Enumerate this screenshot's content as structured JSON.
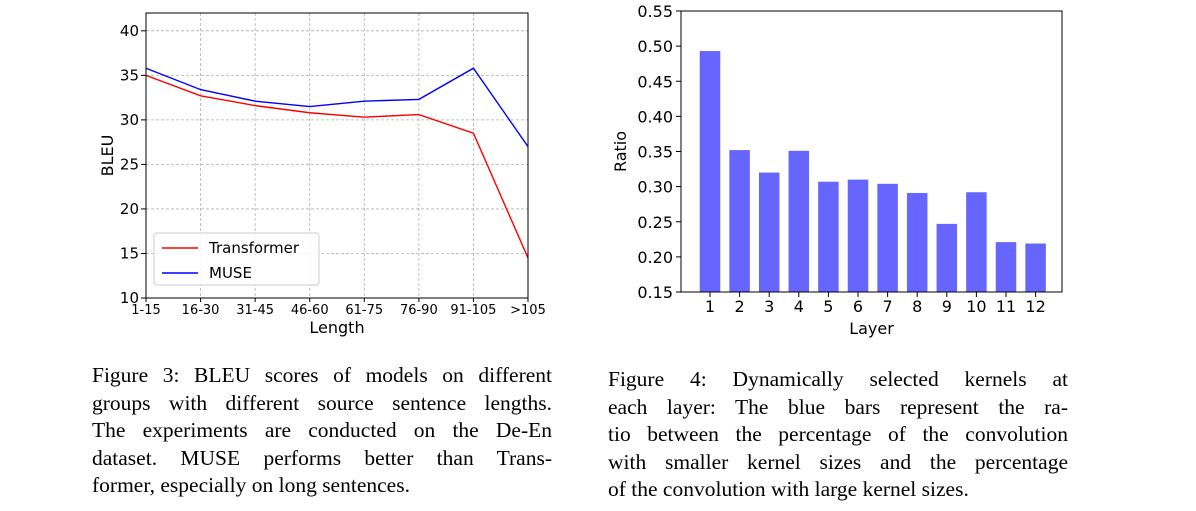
{
  "figures": [
    {
      "caption_lines": [
        "Figure 3: BLEU scores of models on different",
        "groups with different source sentence lengths.",
        "The experiments are conducted on the De-En",
        "dataset.  MUSE performs better than Trans-",
        "former, especially on long sentences."
      ]
    },
    {
      "caption_lines": [
        "Figure 4:  Dynamically selected kernels at",
        "each layer:  The blue bars represent the ra-",
        "tio between the percentage of the convolution",
        "with smaller kernel sizes and the percentage",
        "of the convolution with large kernel sizes."
      ]
    }
  ],
  "chart_data": [
    {
      "type": "line",
      "xlabel": "Length",
      "ylabel": "BLEU",
      "categories": [
        "1-15",
        "16-30",
        "31-45",
        "46-60",
        "61-75",
        "76-90",
        "91-105",
        ">105"
      ],
      "ylim": [
        10,
        42
      ],
      "yticks": [
        10,
        15,
        20,
        25,
        30,
        35,
        40
      ],
      "grid": true,
      "legend_position": "lower-left",
      "series": [
        {
          "name": "Transformer",
          "color": "#ff0000",
          "values": [
            35.0,
            32.7,
            31.6,
            30.8,
            30.3,
            30.6,
            28.5,
            14.5
          ]
        },
        {
          "name": "MUSE",
          "color": "#0000ff",
          "values": [
            35.8,
            33.4,
            32.1,
            31.5,
            32.1,
            32.3,
            35.8,
            27.0
          ]
        }
      ]
    },
    {
      "type": "bar",
      "xlabel": "Layer",
      "ylabel": "Ratio",
      "categories": [
        "1",
        "2",
        "3",
        "4",
        "5",
        "6",
        "7",
        "8",
        "9",
        "10",
        "11",
        "12"
      ],
      "ylim": [
        0.15,
        0.55
      ],
      "yticks": [
        "0.15",
        "0.20",
        "0.25",
        "0.30",
        "0.35",
        "0.40",
        "0.45",
        "0.50",
        "0.55"
      ],
      "grid": false,
      "bar_color": "#6666ff",
      "values": [
        0.493,
        0.352,
        0.32,
        0.351,
        0.307,
        0.31,
        0.304,
        0.291,
        0.247,
        0.292,
        0.221,
        0.219
      ]
    }
  ]
}
